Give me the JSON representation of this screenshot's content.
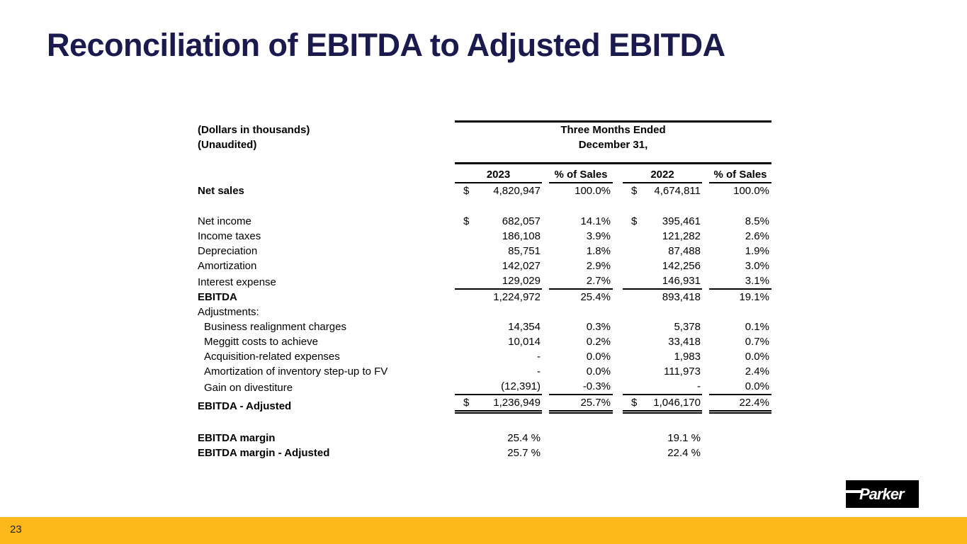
{
  "slide": {
    "title": "Reconciliation of EBITDA to Adjusted EBITDA",
    "page_number": "23",
    "logo_text": "Parker",
    "colors": {
      "title_navy": "#1a1a4e",
      "footer_bar": "#feb81c",
      "logo_bg": "#000000"
    }
  },
  "table": {
    "note1": "(Dollars in thousands)",
    "note2": "(Unaudited)",
    "period_line1": "Three Months Ended",
    "period_line2": "December 31,",
    "col_headers": [
      "2023",
      "% of Sales",
      "2022",
      "% of Sales"
    ],
    "rows": [
      {
        "label": "Net sales",
        "bold": true,
        "d1": "$",
        "v1": "4,820,947",
        "p1": "100.0%",
        "d2": "$",
        "v2": "4,674,811",
        "p2": "100.0%"
      },
      {
        "label": "Net income",
        "d1": "$",
        "v1": "682,057",
        "p1": "14.1%",
        "d2": "$",
        "v2": "395,461",
        "p2": "8.5%",
        "space_before": 22
      },
      {
        "label": "Income taxes",
        "v1": "186,108",
        "p1": "3.9%",
        "v2": "121,282",
        "p2": "2.6%"
      },
      {
        "label": "Depreciation",
        "v1": "85,751",
        "p1": "1.8%",
        "v2": "87,488",
        "p2": "1.9%"
      },
      {
        "label": "Amortization",
        "v1": "142,027",
        "p1": "2.9%",
        "v2": "142,256",
        "p2": "3.0%"
      },
      {
        "label": "Interest expense",
        "v1": "129,029",
        "p1": "2.7%",
        "v2": "146,931",
        "p2": "3.1%",
        "rule": "single"
      },
      {
        "label": "EBITDA",
        "bold": true,
        "v1": "1,224,972",
        "p1": "25.4%",
        "v2": "893,418",
        "p2": "19.1%"
      },
      {
        "label": "Adjustments:"
      },
      {
        "label": "Business realignment charges",
        "indent": true,
        "v1": "14,354",
        "p1": "0.3%",
        "v2": "5,378",
        "p2": "0.1%"
      },
      {
        "label": "Meggitt costs to achieve",
        "indent": true,
        "v1": "10,014",
        "p1": "0.2%",
        "v2": "33,418",
        "p2": "0.7%"
      },
      {
        "label": "Acquisition-related expenses",
        "indent": true,
        "v1": "-",
        "p1": "0.0%",
        "v2": "1,983",
        "p2": "0.0%"
      },
      {
        "label": "Amortization of inventory step-up to FV",
        "indent": true,
        "v1": "-",
        "p1": "0.0%",
        "v2": "111,973",
        "p2": "2.4%"
      },
      {
        "label": "Gain on divestiture",
        "indent": true,
        "v1": "(12,391)",
        "p1": "-0.3%",
        "v2": "-",
        "p2": "0.0%",
        "rule": "single"
      },
      {
        "label": "EBITDA - Adjusted",
        "bold": true,
        "d1": "$",
        "v1": "1,236,949",
        "p1": "25.7%",
        "d2": "$",
        "v2": "1,046,170",
        "p2": "22.4%",
        "rule": "double"
      },
      {
        "label": "EBITDA margin",
        "bold": true,
        "v1": "25.4 %",
        "v2": "19.1 %",
        "space_before": 24
      },
      {
        "label": "EBITDA margin - Adjusted",
        "bold": true,
        "v1": "25.7 %",
        "v2": "22.4 %"
      }
    ]
  }
}
